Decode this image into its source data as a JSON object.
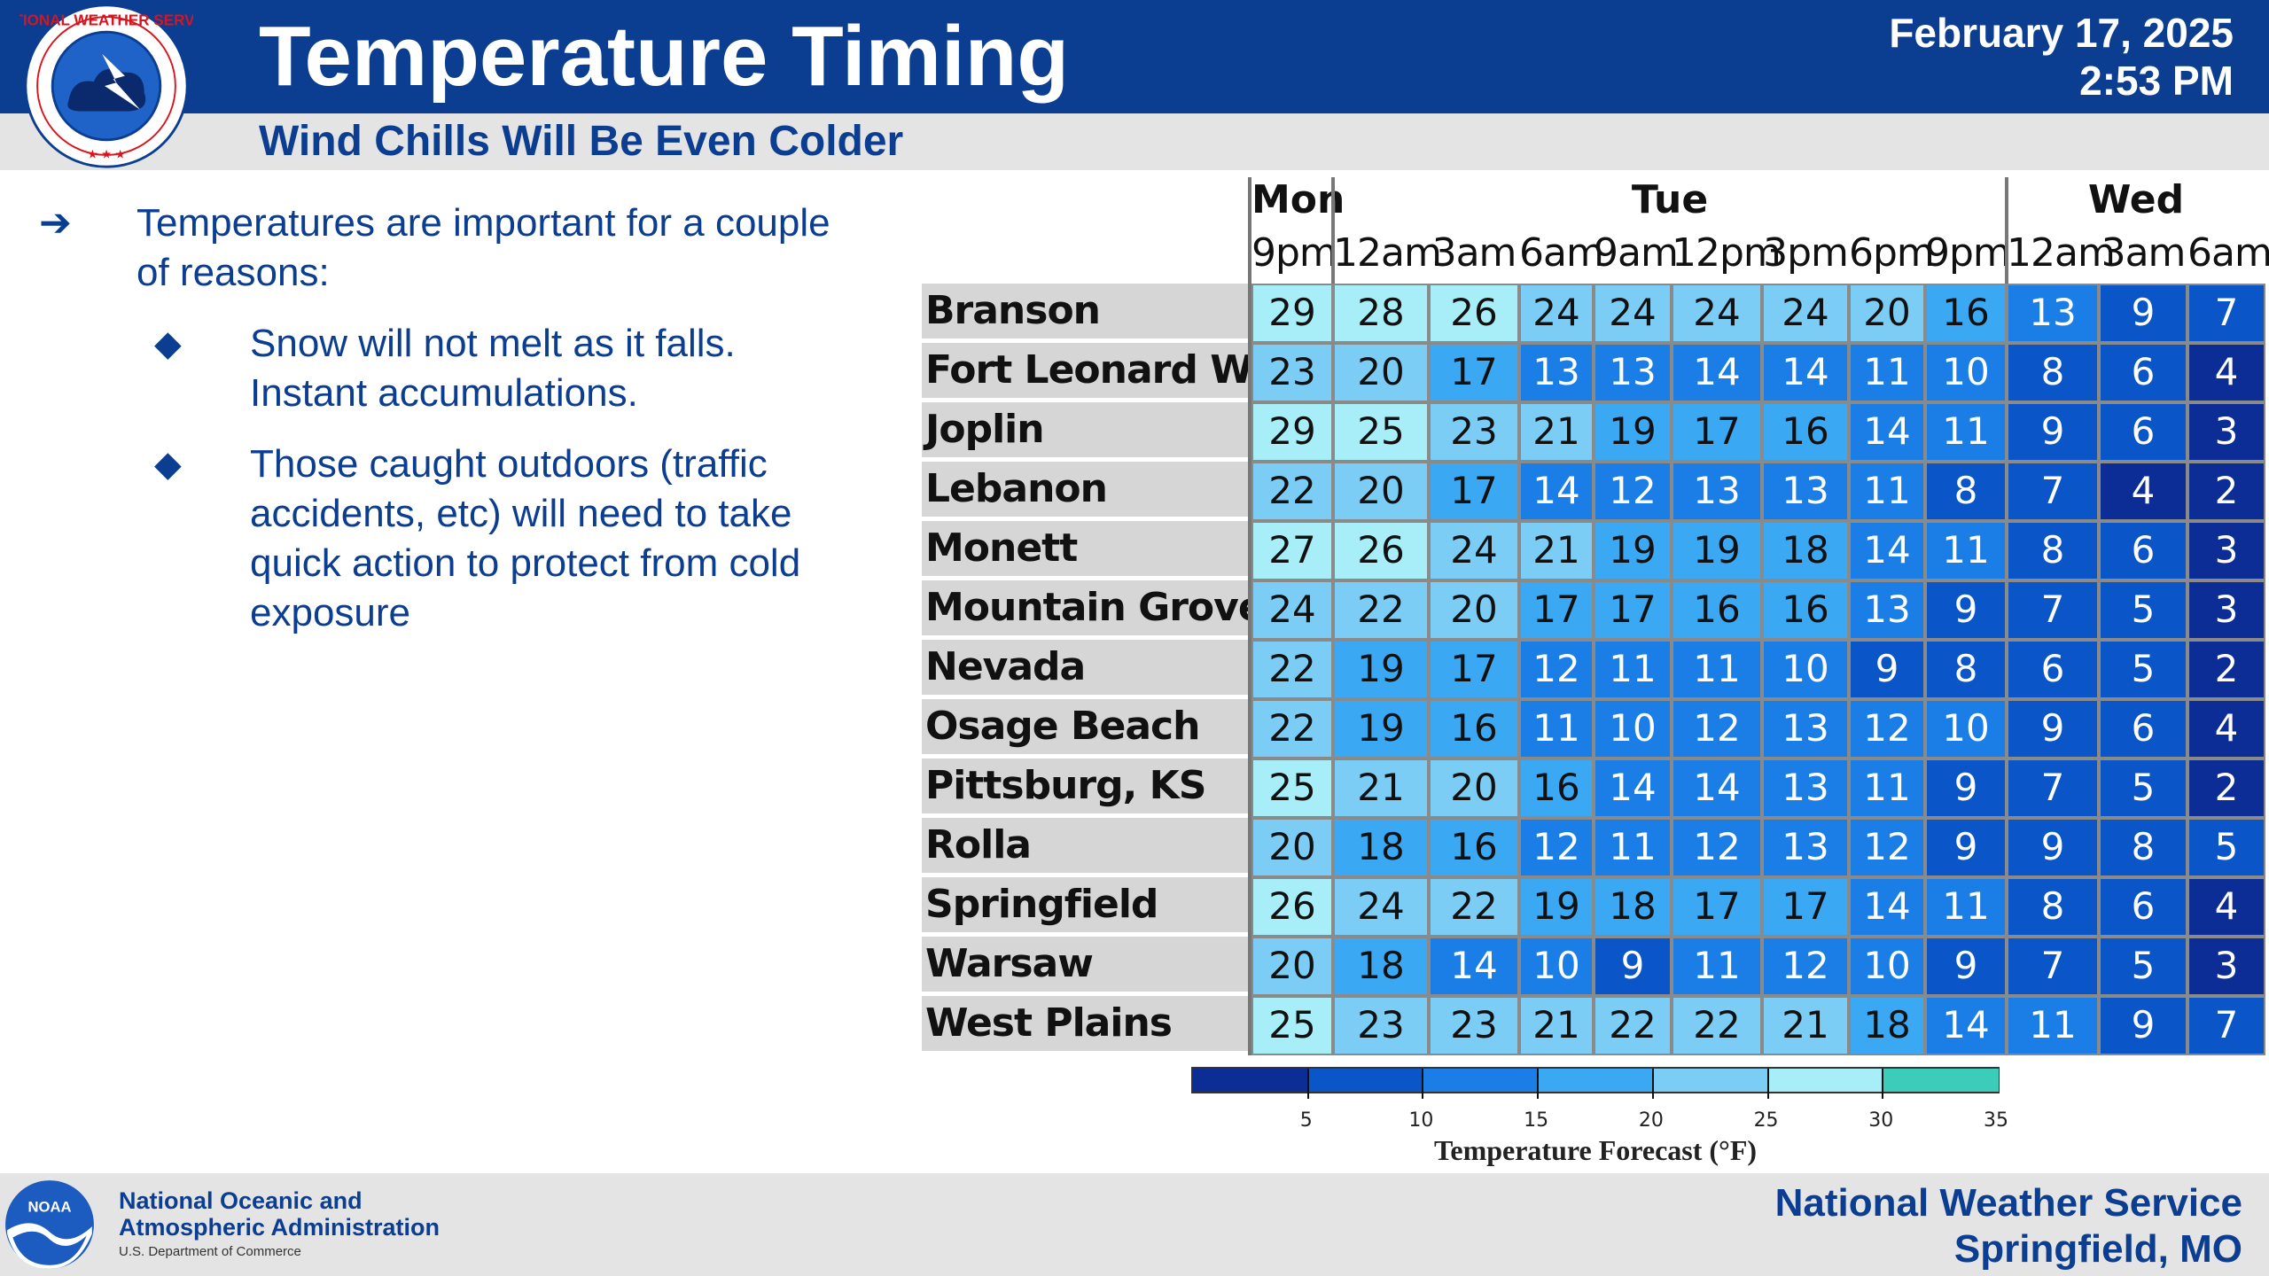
{
  "header": {
    "title": "Temperature Timing",
    "subtitle": "Wind Chills Will Be Even Colder",
    "date": "February 17, 2025",
    "time": "2:53 PM",
    "logo_text": "NATIONAL WEATHER SERVICE"
  },
  "bullets": {
    "main_marker": "➔",
    "main_lines": [
      "Temperatures are important for a couple",
      "of reasons:"
    ],
    "sub_marker": "◆",
    "sub1_lines": [
      "Snow will not melt as it falls.",
      "Instant accumulations."
    ],
    "sub2_lines": [
      "Those caught outdoors (traffic",
      "accidents, etc) will need to take",
      "quick action to protect from cold",
      "exposure"
    ]
  },
  "table": {
    "days": [
      {
        "label": "Mon"
      },
      {
        "label": "Tue"
      },
      {
        "label": "Wed"
      }
    ],
    "times": [
      "9pm",
      "12am",
      "3am",
      "6am",
      "9am",
      "12pm",
      "3pm",
      "6pm",
      "9pm",
      "12am",
      "3am",
      "6am"
    ],
    "rows": [
      {
        "name": "Branson",
        "values": [
          29,
          28,
          26,
          24,
          24,
          24,
          24,
          20,
          16,
          13,
          9,
          7
        ]
      },
      {
        "name": "Fort Leonard Wood",
        "values": [
          23,
          20,
          17,
          13,
          13,
          14,
          14,
          11,
          10,
          8,
          6,
          4
        ]
      },
      {
        "name": "Joplin",
        "values": [
          29,
          25,
          23,
          21,
          19,
          17,
          16,
          14,
          11,
          9,
          6,
          3
        ]
      },
      {
        "name": "Lebanon",
        "values": [
          22,
          20,
          17,
          14,
          12,
          13,
          13,
          11,
          8,
          7,
          4,
          2
        ]
      },
      {
        "name": "Monett",
        "values": [
          27,
          26,
          24,
          21,
          19,
          19,
          18,
          14,
          11,
          8,
          6,
          3
        ]
      },
      {
        "name": "Mountain Grove",
        "values": [
          24,
          22,
          20,
          17,
          17,
          16,
          16,
          13,
          9,
          7,
          5,
          3
        ]
      },
      {
        "name": "Nevada",
        "values": [
          22,
          19,
          17,
          12,
          11,
          11,
          10,
          9,
          8,
          6,
          5,
          2
        ]
      },
      {
        "name": "Osage Beach",
        "values": [
          22,
          19,
          16,
          11,
          10,
          12,
          13,
          12,
          10,
          9,
          6,
          4
        ]
      },
      {
        "name": "Pittsburg, KS",
        "values": [
          25,
          21,
          20,
          16,
          14,
          14,
          13,
          11,
          9,
          7,
          5,
          2
        ]
      },
      {
        "name": "Rolla",
        "values": [
          20,
          18,
          16,
          12,
          11,
          12,
          13,
          12,
          9,
          9,
          8,
          5
        ]
      },
      {
        "name": "Springfield",
        "values": [
          26,
          24,
          22,
          19,
          18,
          17,
          17,
          14,
          11,
          8,
          6,
          4
        ]
      },
      {
        "name": "Warsaw",
        "values": [
          20,
          18,
          14,
          10,
          9,
          11,
          12,
          10,
          9,
          7,
          5,
          3
        ]
      },
      {
        "name": "West Plains",
        "values": [
          25,
          23,
          23,
          21,
          22,
          22,
          21,
          18,
          14,
          11,
          9,
          7
        ]
      }
    ]
  },
  "legend": {
    "title": "Temperature Forecast (°F)",
    "ticks": [
      "5",
      "10",
      "15",
      "20",
      "25",
      "30",
      "35"
    ],
    "colors": [
      "#0d2d96",
      "#0a56c8",
      "#1a7ee6",
      "#3aa8f2",
      "#7ccdf6",
      "#a8eef8",
      "#3cccba"
    ]
  },
  "footer": {
    "noaa_line1": "National Oceanic and",
    "noaa_line2": "Atmospheric Administration",
    "noaa_dept": "U.S. Department of Commerce",
    "noaa_logo_text": "NOAA",
    "office_line1": "National Weather Service",
    "office_line2": "Springfield, MO"
  }
}
